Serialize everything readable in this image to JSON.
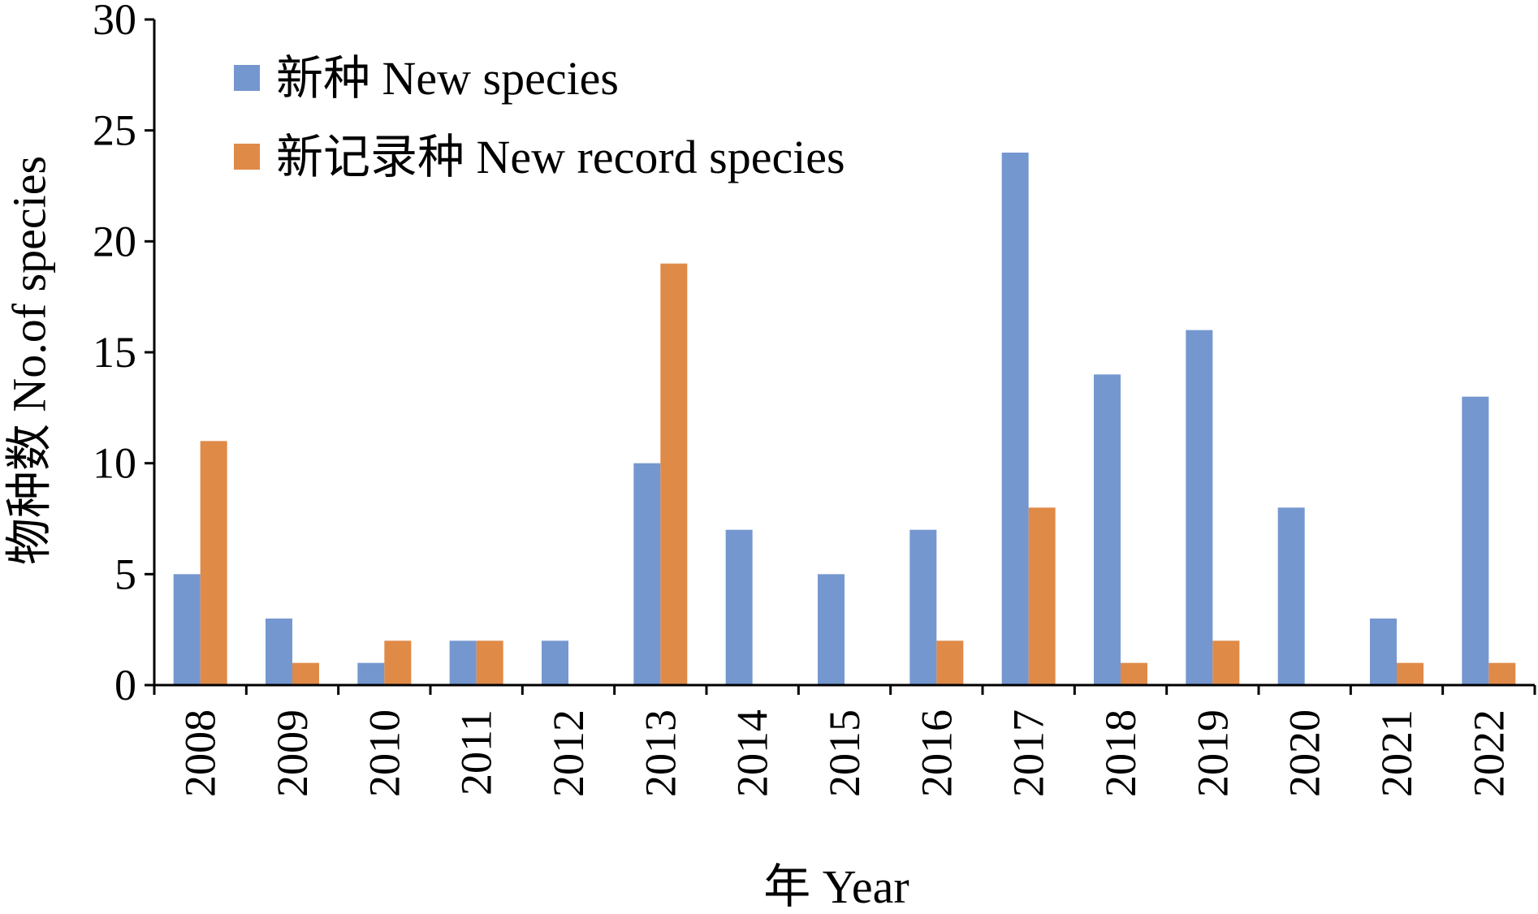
{
  "chart_data": {
    "type": "bar",
    "title": "",
    "xlabel": "年 Year",
    "ylabel": "物种数 No.of species",
    "ylim": [
      0,
      30
    ],
    "yticks": [
      0,
      5,
      10,
      15,
      20,
      25,
      30
    ],
    "grid": false,
    "legend_position": "top-left",
    "categories": [
      "2008",
      "2009",
      "2010",
      "2011",
      "2012",
      "2013",
      "2014",
      "2015",
      "2016",
      "2017",
      "2018",
      "2019",
      "2020",
      "2021",
      "2022"
    ],
    "series": [
      {
        "name": "新种 New species",
        "color": "#7597D0",
        "values": [
          5,
          3,
          1,
          2,
          2,
          10,
          7,
          5,
          7,
          24,
          14,
          16,
          8,
          3,
          13
        ]
      },
      {
        "name": "新记录种 New record species",
        "color": "#E08A48",
        "values": [
          11,
          1,
          2,
          2,
          0,
          19,
          0,
          0,
          2,
          8,
          1,
          2,
          0,
          1,
          1
        ]
      }
    ]
  }
}
